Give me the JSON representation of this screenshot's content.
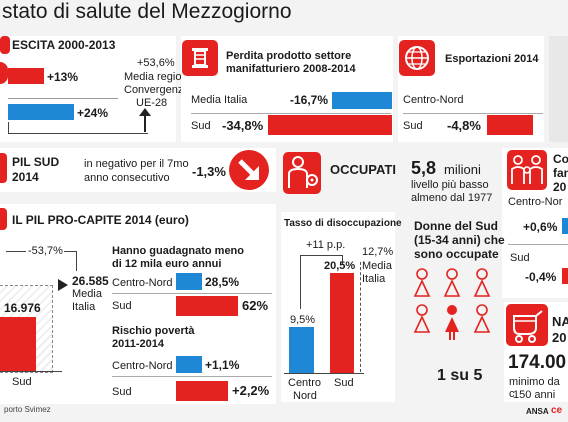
{
  "title": "stato di salute del Mezzogiorno",
  "crescita": {
    "heading": "ESCITA 2000-2013",
    "v1": "+13%",
    "v2": "+24%",
    "media_value": "+53,6%",
    "media_label": "Media regioni",
    "convergenza": "Convergenza",
    "ue": "UE-28"
  },
  "manifatturiero": {
    "title_line1": "Perdita prodotto settore",
    "title_line2": "manifatturiero 2008-2014",
    "row1_label": "Media Italia",
    "row1_value": "-16,7%",
    "row2_label": "Sud",
    "row2_value": "-34,8%"
  },
  "esportazioni": {
    "title": "Esportazioni 2014",
    "row1_label": "Centro-Nord",
    "row2_label": "Sud",
    "row2_value": "-4,8%"
  },
  "pil_sud": {
    "label_line1": "PIL SUD",
    "label_line2": "2014",
    "note_line1": "in negativo per il 7mo",
    "note_line2": "anno consecutivo",
    "value": "-1,3%"
  },
  "occupati": {
    "title": "OCCUPATI",
    "big_value": "5,8",
    "big_unit": "milioni",
    "note_line1": "livello più basso",
    "note_line2": "almeno dal 1977"
  },
  "famiglie": {
    "title_line1": "Co",
    "title_line2": "fan",
    "title_line3": "20",
    "row1_label": "Centro-Nor",
    "row1_value": "+0,6%",
    "row2_label": "Sud",
    "row2_value": "-0,4%"
  },
  "pil_procapite": {
    "title": "IL PIL PRO-CAPITE 2014 (euro)",
    "diff": "-53,7%",
    "media_value": "26.585",
    "media_l1": "Media",
    "media_l2": "Italia",
    "sud_value": "16.976",
    "sud_label": "Sud"
  },
  "reddito": {
    "title_line1": "Hanno guadagnato meno",
    "title_line2": "di 12 mila euro annui",
    "row1_label": "Centro-Nord",
    "row1_value": "28,5%",
    "row2_label": "Sud",
    "row2_value": "62%"
  },
  "poverta": {
    "title_line1": "Rischio povertà",
    "title_line2": "2011-2014",
    "row1_label": "Centro-Nord",
    "row1_value": "+1,1%",
    "row2_label": "Sud",
    "row2_value": "+2,2%"
  },
  "disoccupazione": {
    "title": "Tasso di disoccupazione",
    "diff": "+11 p.p.",
    "cn_value": "9,5%",
    "sud_value": "20,5%",
    "media_value": "12,7%",
    "media_l1": "Media",
    "media_l2": "Italia",
    "cn_l1": "Centro",
    "cn_l2": "Nord",
    "sud_label": "Sud"
  },
  "donne": {
    "title_line1": "Donne del Sud",
    "title_line2": "(15-34 anni) che",
    "title_line3": "sono occupate",
    "ratio": "1 su 5"
  },
  "nascite": {
    "title_line1": "NA",
    "title_line2": "20",
    "value": "174.00",
    "note_line1": "minimo da c",
    "note_line2": "150 anni"
  },
  "footer": {
    "source": "porto Svimez",
    "agency": "ANSA",
    "agency_mark": "ce"
  },
  "chart_data": [
    {
      "type": "bar",
      "title": "Perdita prodotto settore manifatturiero 2008-2014",
      "categories": [
        "Media Italia",
        "Sud"
      ],
      "values": [
        -16.7,
        -34.8
      ]
    },
    {
      "type": "bar",
      "title": "Esportazioni 2014",
      "categories": [
        "Centro-Nord",
        "Sud"
      ],
      "values": [
        null,
        -4.8
      ]
    },
    {
      "type": "bar",
      "title": "IL PIL PRO-CAPITE 2014 (euro)",
      "categories": [
        "Media Italia",
        "Sud"
      ],
      "values": [
        26585,
        16976
      ]
    },
    {
      "type": "bar",
      "title": "Hanno guadagnato meno di 12 mila euro annui",
      "categories": [
        "Centro-Nord",
        "Sud"
      ],
      "values": [
        28.5,
        62
      ]
    },
    {
      "type": "bar",
      "title": "Rischio povertà 2011-2014",
      "categories": [
        "Centro-Nord",
        "Sud"
      ],
      "values": [
        1.1,
        2.2
      ]
    },
    {
      "type": "bar",
      "title": "Tasso di disoccupazione",
      "categories": [
        "Centro Nord",
        "Sud"
      ],
      "values": [
        9.5,
        20.5
      ],
      "reference": 12.7
    }
  ]
}
